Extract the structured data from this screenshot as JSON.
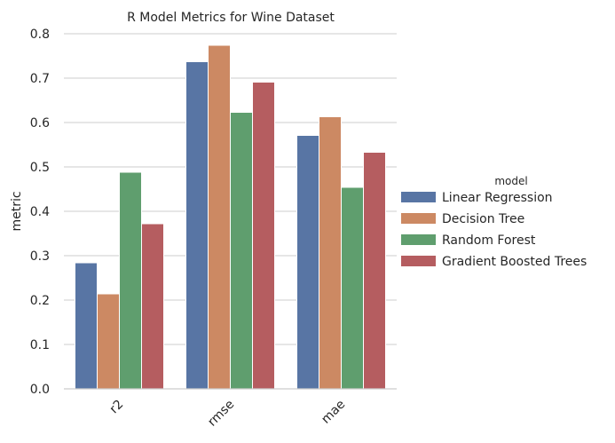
{
  "chart_data": {
    "type": "bar",
    "title": "R Model Metrics for Wine Dataset",
    "xlabel": "",
    "ylabel": "metric",
    "categories": [
      "r2",
      "rmse",
      "mae"
    ],
    "ylim": [
      0,
      0.8
    ],
    "yticks": [
      "0.0",
      "0.1",
      "0.2",
      "0.3",
      "0.4",
      "0.5",
      "0.6",
      "0.7",
      "0.8"
    ],
    "grid": "horizontal",
    "legend": {
      "title": "model",
      "placement": "right"
    },
    "series": [
      {
        "name": "Linear Regression",
        "color": "#5875a4",
        "values": [
          0.284,
          0.737,
          0.571
        ]
      },
      {
        "name": "Decision Tree",
        "color": "#cc8963",
        "values": [
          0.214,
          0.774,
          0.613
        ]
      },
      {
        "name": "Random Forest",
        "color": "#5f9e6e",
        "values": [
          0.488,
          0.623,
          0.454
        ]
      },
      {
        "name": "Gradient Boosted Trees",
        "color": "#b55d60",
        "values": [
          0.372,
          0.691,
          0.533
        ]
      }
    ]
  }
}
